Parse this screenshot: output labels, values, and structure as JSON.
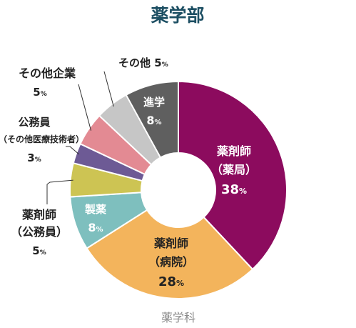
{
  "chart_data": {
    "type": "pie",
    "title": "薬学部",
    "footer": "薬学科",
    "donut": true,
    "slices": [
      {
        "label": "薬剤師",
        "sub": "（薬局）",
        "value": 38,
        "value_text": "38",
        "unit": "%",
        "color": "#8c0b5e"
      },
      {
        "label": "薬剤師",
        "sub": "（病院）",
        "value": 28,
        "value_text": "28",
        "unit": "%",
        "color": "#f3b45c"
      },
      {
        "label": "製薬",
        "sub": "",
        "value": 8,
        "value_text": "8",
        "unit": "%",
        "color": "#7ebfbe"
      },
      {
        "label": "薬剤師",
        "sub": "（公務員）",
        "value": 5,
        "value_text": "5",
        "unit": "%",
        "color": "#cdc453"
      },
      {
        "label": "公務員",
        "sub": "（その他医療技術者）",
        "value": 3,
        "value_text": "3",
        "unit": "%",
        "color": "#6d5a95"
      },
      {
        "label": "その他企業",
        "sub": "",
        "value": 5,
        "value_text": "5",
        "unit": "%",
        "color": "#e38a93"
      },
      {
        "label": "その他",
        "sub": "",
        "value": 5,
        "value_text": "5",
        "unit": "%",
        "color": "#c6c6c6"
      },
      {
        "label": "進学",
        "sub": "",
        "value": 8,
        "value_text": "8",
        "unit": "%",
        "color": "#5f5f5f"
      }
    ]
  }
}
